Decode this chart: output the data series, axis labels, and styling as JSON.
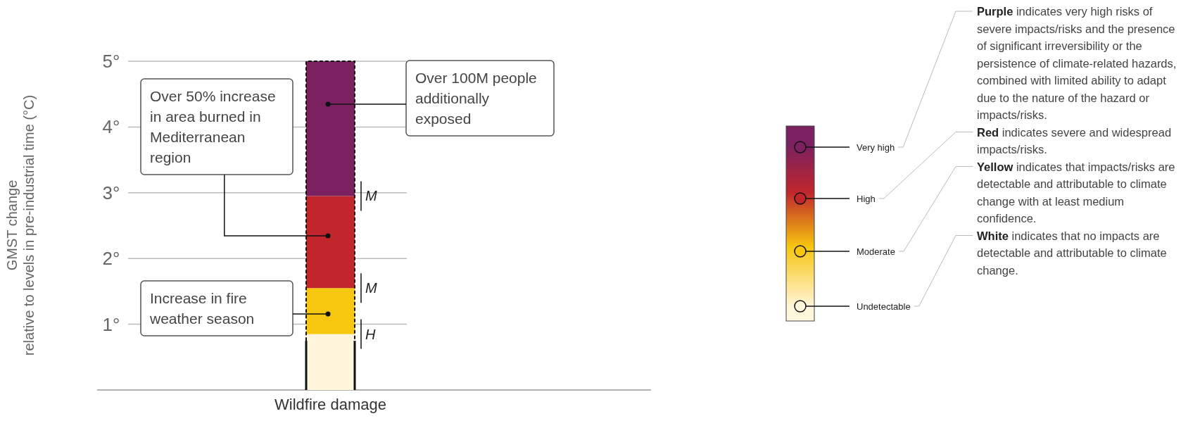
{
  "chart_data": {
    "type": "bar",
    "stacked": true,
    "ylabel": "GMST change\nrelative to levels in pre-industrial time (°C)",
    "categories": [
      "Wildfire damage"
    ],
    "series": [
      {
        "name": "Undetectable",
        "color": "#fff6dc",
        "values": [
          0.85
        ]
      },
      {
        "name": "Moderate",
        "color": "#f7c60f",
        "values": [
          0.7
        ]
      },
      {
        "name": "High",
        "color": "#c0262c",
        "values": [
          1.4
        ]
      },
      {
        "name": "Very high",
        "color": "#7b2160",
        "values": [
          2.05
        ]
      }
    ],
    "ylim": [
      0,
      5
    ],
    "yticks": [
      {
        "value": 1,
        "label": "1°"
      },
      {
        "value": 2,
        "label": "2°"
      },
      {
        "value": 3,
        "label": "3°"
      },
      {
        "value": 4,
        "label": "4°"
      },
      {
        "value": 5,
        "label": "5°"
      }
    ],
    "grid": "y",
    "legend": "right",
    "annotations": [
      "Over 50% increase in area burned in Mediterranean region",
      "Over 100M people additionally exposed",
      "Increase in fire weather season",
      "M",
      "M",
      "H",
      "Purple indicates very high risks of severe impacts/risks and the presence of significant irreversibility or the persistence of climate-related hazards, combined with limited ability to adapt due to the nature of the hazard or impacts/risks.",
      "Red indicates severe and widespread impacts/risks.",
      "Yellow indicates that impacts/risks are detectable and attributable to climate change with at least medium confidence.",
      "White indicates that no impacts are detectable and attributable to climate change."
    ]
  }
}
